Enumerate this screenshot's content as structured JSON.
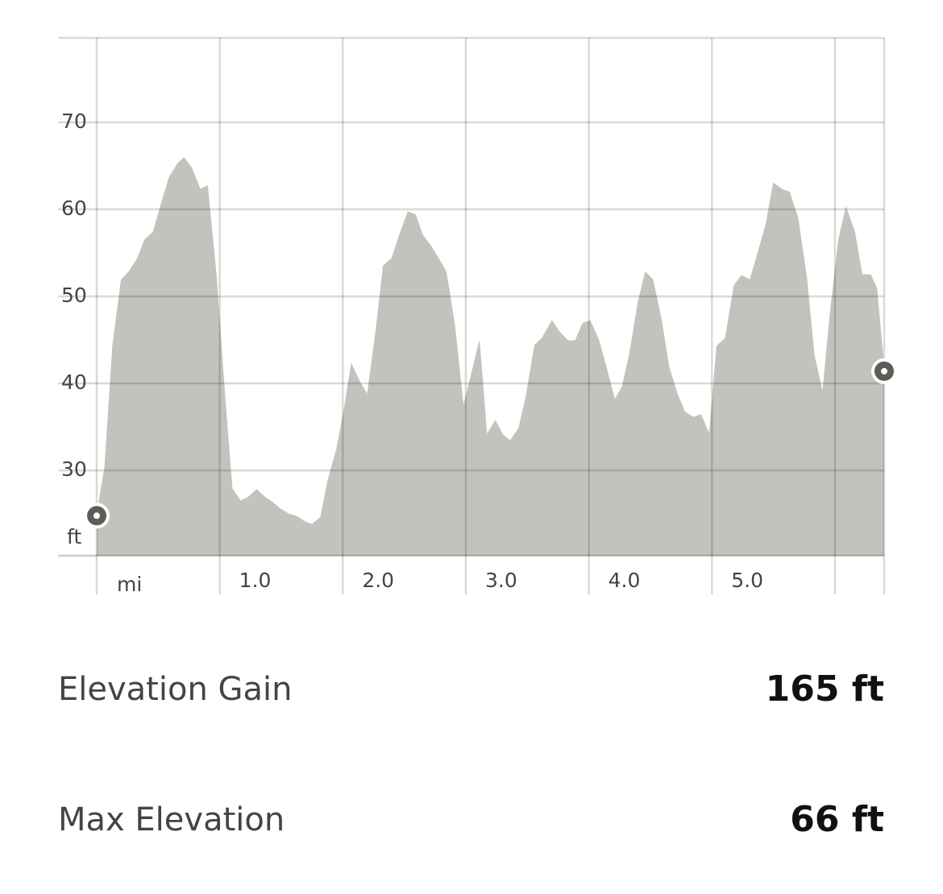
{
  "chart_data": {
    "type": "area",
    "x": [
      0,
      0.066,
      0.13,
      0.2,
      0.26,
      0.33,
      0.39,
      0.46,
      0.52,
      0.59,
      0.66,
      0.71,
      0.77,
      0.84,
      0.9,
      0.97,
      1.04,
      1.1,
      1.17,
      1.23,
      1.3,
      1.36,
      1.43,
      1.49,
      1.56,
      1.63,
      1.69,
      1.75,
      1.82,
      1.88,
      1.95,
      2.01,
      2.07,
      2.14,
      2.2,
      2.27,
      2.33,
      2.4,
      2.46,
      2.53,
      2.59,
      2.65,
      2.72,
      2.78,
      2.84,
      2.91,
      2.98,
      3.05,
      3.11,
      3.17,
      3.24,
      3.3,
      3.36,
      3.43,
      3.49,
      3.56,
      3.62,
      3.7,
      3.76,
      3.83,
      3.89,
      3.95,
      4.01,
      4.08,
      4.14,
      4.21,
      4.27,
      4.33,
      4.4,
      4.46,
      4.52,
      4.59,
      4.65,
      4.72,
      4.78,
      4.85,
      4.91,
      4.98,
      5.04,
      5.11,
      5.18,
      5.24,
      5.31,
      5.37,
      5.44,
      5.5,
      5.57,
      5.63,
      5.7,
      5.77,
      5.83,
      5.9,
      5.96,
      6.03,
      6.09,
      6.16,
      6.22,
      6.29,
      6.34,
      6.4
    ],
    "values": [
      24.8,
      30.4,
      44.3,
      51.9,
      52.8,
      54.3,
      56.5,
      57.4,
      60.4,
      63.7,
      65.3,
      65.9,
      64.8,
      62.3,
      62.7,
      52.6,
      38.7,
      27.9,
      26.5,
      26.9,
      27.8,
      27.0,
      26.3,
      25.6,
      25.0,
      24.7,
      24.1,
      23.8,
      24.6,
      28.9,
      32.4,
      36.9,
      42.2,
      40.1,
      38.7,
      46.1,
      53.5,
      54.4,
      57.0,
      59.7,
      59.4,
      57.0,
      55.7,
      54.3,
      52.8,
      46.6,
      37.3,
      41.3,
      44.8,
      34.1,
      35.7,
      34.1,
      33.4,
      34.8,
      38.5,
      44.4,
      45.2,
      47.2,
      45.9,
      44.9,
      44.9,
      46.9,
      47.2,
      45.0,
      41.9,
      38.1,
      39.6,
      43.3,
      49.3,
      52.8,
      51.9,
      47.2,
      41.9,
      38.7,
      36.7,
      36.1,
      36.4,
      34.1,
      44.3,
      45.2,
      51.2,
      52.4,
      51.9,
      54.8,
      58.3,
      63.0,
      62.3,
      62.0,
      58.9,
      52.1,
      43.3,
      38.9,
      47.8,
      56.5,
      60.2,
      57.4,
      52.5,
      52.5,
      50.9,
      41.4
    ],
    "color": "#c3c2bc",
    "xlim": [
      0,
      6.4
    ],
    "ylim": [
      20.2,
      79.7
    ],
    "xticks": [
      {
        "value": 0,
        "label": null
      },
      {
        "value": 1,
        "label": "1.0"
      },
      {
        "value": 2,
        "label": "2.0"
      },
      {
        "value": 3,
        "label": "3.0"
      },
      {
        "value": 4,
        "label": "4.0"
      },
      {
        "value": 5,
        "label": "5.0"
      },
      {
        "value": 6,
        "label": null
      }
    ],
    "yticks": [
      30,
      40,
      50,
      60,
      70
    ],
    "x_unit": "mi",
    "y_unit": "ft",
    "grid": true
  },
  "stats": [
    {
      "label": "Elevation Gain",
      "value": "165 ft"
    },
    {
      "label": "Max Elevation",
      "value": "66 ft"
    }
  ]
}
